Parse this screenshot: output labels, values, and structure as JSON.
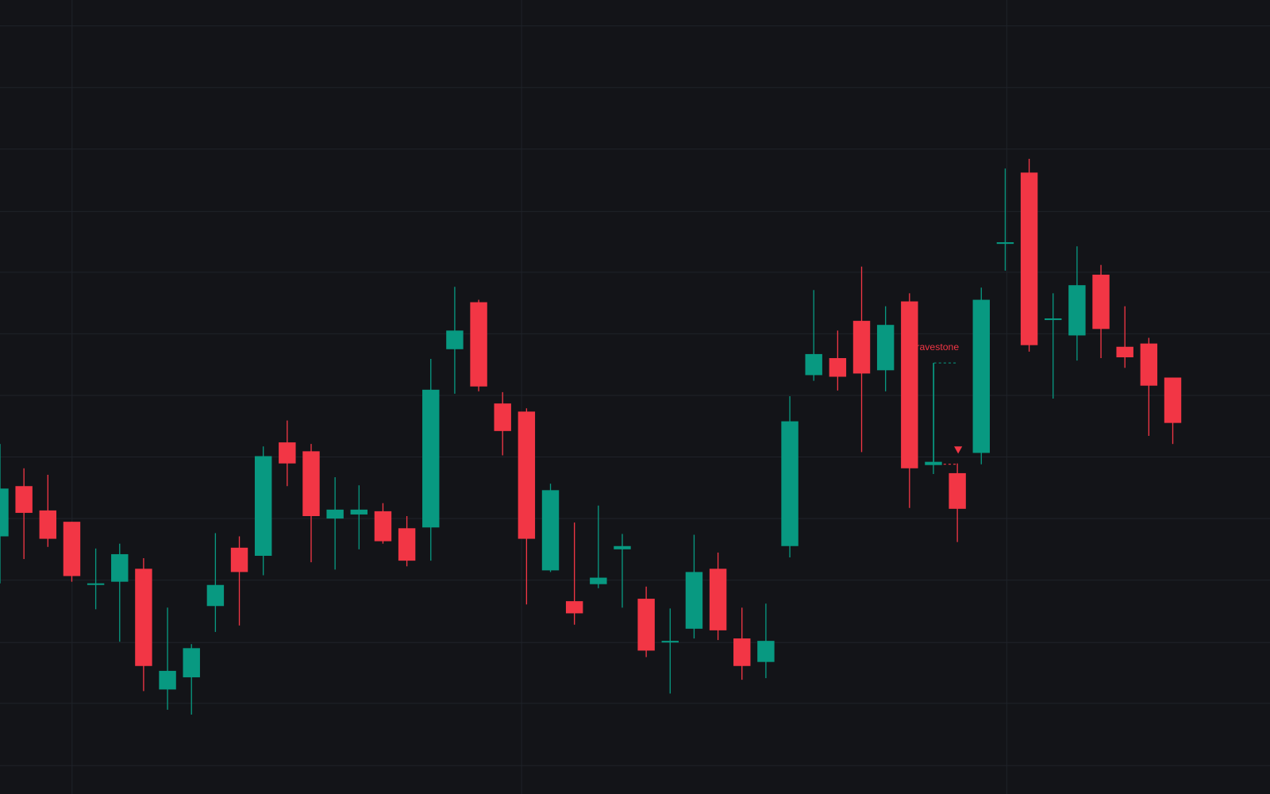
{
  "chart_data": {
    "type": "candlestick",
    "categories": [
      null,
      null,
      null,
      null,
      null,
      null,
      null,
      null,
      null,
      null,
      null,
      null,
      null,
      null,
      null,
      null,
      null,
      null,
      null,
      null,
      null,
      null,
      null,
      null,
      null,
      null,
      null,
      null,
      null,
      null,
      null,
      null,
      null,
      null,
      null,
      null,
      null,
      null,
      null,
      null,
      null,
      null,
      null,
      null,
      null,
      null,
      null,
      null,
      null,
      null
    ],
    "open": [
      318,
      380,
      350,
      336,
      258,
      262,
      278,
      129,
      144,
      232,
      304,
      294,
      434,
      423,
      340,
      345,
      349,
      328,
      329,
      549,
      607,
      482,
      472,
      276,
      238,
      259,
      302,
      241,
      188,
      204,
      278,
      192,
      163,
      306,
      517,
      538,
      584,
      523,
      608,
      406,
      396,
      421,
      680,
      767,
      586,
      566,
      641,
      552,
      556,
      514
    ],
    "high": [
      432,
      402,
      394,
      336,
      303,
      309,
      291,
      230,
      185,
      322,
      318,
      429,
      461,
      432,
      391,
      381,
      359,
      343,
      537,
      626,
      610,
      496,
      476,
      383,
      335,
      356,
      321,
      256,
      229,
      320,
      298,
      230,
      235,
      491,
      622,
      572,
      651,
      602,
      618,
      532,
      408,
      625,
      772,
      784,
      618,
      676,
      653,
      602,
      563,
      514
    ],
    "low": [
      260,
      290,
      305,
      262,
      228,
      188,
      127,
      104,
      98,
      200,
      208,
      270,
      380,
      286,
      277,
      302,
      309,
      281,
      288,
      494,
      497,
      418,
      234,
      274,
      209,
      254,
      230,
      169,
      124,
      192,
      190,
      141,
      143,
      292,
      510,
      498,
      422,
      497,
      353,
      395,
      311,
      407,
      646,
      546,
      488,
      535,
      538,
      526,
      442,
      432
    ],
    "close": [
      377,
      347,
      315,
      269,
      260,
      296,
      158,
      152,
      180,
      258,
      274,
      417,
      408,
      343,
      351,
      351,
      312,
      288,
      499,
      572,
      503,
      448,
      315,
      375,
      223,
      267,
      306,
      177,
      189,
      274,
      202,
      158,
      189,
      460,
      543,
      515,
      519,
      579,
      402,
      410,
      352,
      610,
      681,
      554,
      587,
      628,
      574,
      539,
      504,
      458
    ],
    "up_color": "#089981",
    "down_color": "#f23645",
    "ylim": [
      0,
      980
    ],
    "yticks": [
      35,
      112,
      187,
      264,
      340,
      416,
      492,
      568,
      644,
      719,
      796,
      872,
      948
    ],
    "grid": true,
    "annotations": [
      {
        "text": "Gravestone"
      }
    ]
  }
}
